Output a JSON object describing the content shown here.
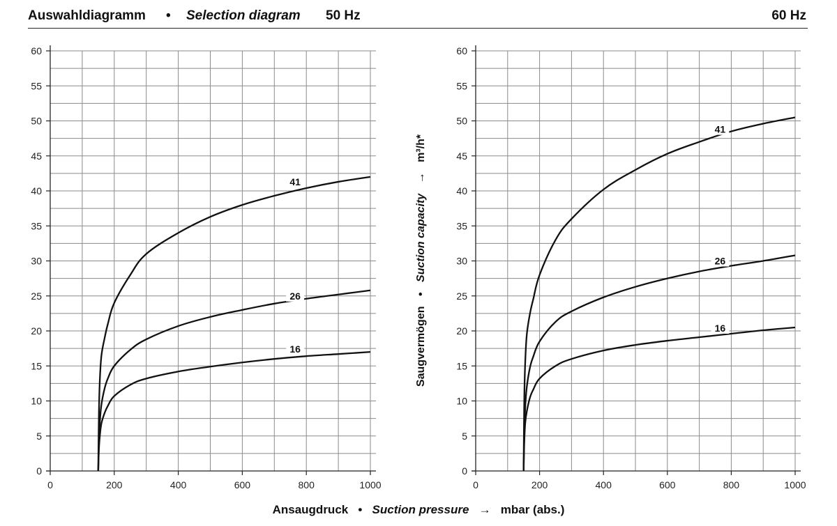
{
  "header": {
    "title_de": "Auswahldiagramm",
    "separator": "•",
    "title_en": "Selection diagram",
    "freq_left": "50 Hz",
    "freq_right": "60 Hz"
  },
  "y_axis_label": {
    "de": "Saugvermögen",
    "separator": "•",
    "en": "Suction capacity",
    "arrow": "→",
    "unit": "m³/h*"
  },
  "x_axis_label": {
    "de": "Ansaugdruck",
    "separator": "•",
    "en": "Suction pressure",
    "arrow": "→",
    "unit": "mbar (abs.)"
  },
  "chart_data": [
    {
      "type": "line",
      "title": "50 Hz",
      "xlim": [
        0,
        1000
      ],
      "ylim": [
        0,
        60
      ],
      "x_ticks": [
        0,
        200,
        400,
        600,
        800,
        1000
      ],
      "y_ticks": [
        0,
        5,
        10,
        15,
        20,
        25,
        30,
        35,
        40,
        45,
        50,
        55,
        60
      ],
      "grid": true,
      "series": [
        {
          "name": "41",
          "x": [
            150,
            152,
            155,
            160,
            170,
            180,
            200,
            250,
            300,
            400,
            500,
            600,
            700,
            800,
            900,
            1000
          ],
          "y": [
            0,
            8,
            13,
            16.5,
            19,
            21,
            24,
            28,
            31,
            34,
            36.3,
            38,
            39.3,
            40.4,
            41.3,
            42
          ]
        },
        {
          "name": "26",
          "x": [
            150,
            152,
            155,
            160,
            170,
            180,
            200,
            250,
            300,
            400,
            500,
            600,
            700,
            800,
            900,
            1000
          ],
          "y": [
            0,
            4,
            7,
            9.5,
            11.8,
            13.2,
            15,
            17.3,
            18.8,
            20.7,
            22,
            23,
            23.9,
            24.6,
            25.2,
            25.8
          ]
        },
        {
          "name": "16",
          "x": [
            150,
            152,
            155,
            160,
            170,
            180,
            200,
            250,
            300,
            400,
            500,
            600,
            700,
            800,
            900,
            1000
          ],
          "y": [
            0,
            3,
            5,
            6.8,
            8.3,
            9.3,
            10.7,
            12.3,
            13.2,
            14.2,
            14.9,
            15.5,
            16,
            16.4,
            16.7,
            17
          ]
        }
      ]
    },
    {
      "type": "line",
      "title": "60 Hz",
      "xlim": [
        0,
        1000
      ],
      "ylim": [
        0,
        60
      ],
      "x_ticks": [
        0,
        200,
        400,
        600,
        800,
        1000
      ],
      "y_ticks": [
        0,
        5,
        10,
        15,
        20,
        25,
        30,
        35,
        40,
        45,
        50,
        55,
        60
      ],
      "grid": true,
      "series": [
        {
          "name": "41",
          "x": [
            150,
            152,
            155,
            160,
            170,
            180,
            200,
            250,
            300,
            400,
            500,
            600,
            700,
            800,
            900,
            1000
          ],
          "y": [
            0,
            10,
            15.5,
            19.5,
            22.5,
            24.5,
            28,
            33,
            36,
            40.2,
            43,
            45.3,
            47,
            48.5,
            49.6,
            50.5
          ]
        },
        {
          "name": "26",
          "x": [
            150,
            152,
            155,
            160,
            170,
            180,
            200,
            250,
            300,
            400,
            500,
            600,
            700,
            800,
            900,
            1000
          ],
          "y": [
            0,
            5,
            9,
            12,
            14.8,
            16.3,
            18.5,
            21.3,
            22.8,
            24.8,
            26.3,
            27.5,
            28.5,
            29.3,
            30,
            30.8
          ]
        },
        {
          "name": "16",
          "x": [
            150,
            152,
            155,
            160,
            170,
            180,
            200,
            250,
            300,
            400,
            500,
            600,
            700,
            800,
            900,
            1000
          ],
          "y": [
            0,
            4,
            6.8,
            8.5,
            10.5,
            11.6,
            13.2,
            15,
            16,
            17.2,
            18,
            18.6,
            19.1,
            19.6,
            20.1,
            20.5
          ]
        }
      ]
    }
  ]
}
